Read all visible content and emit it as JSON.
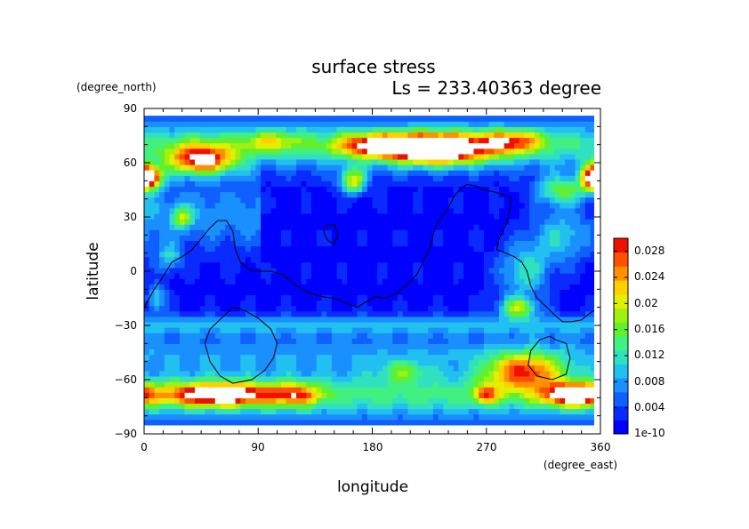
{
  "chart_data": {
    "type": "heatmap",
    "title": "surface stress",
    "subtitle": "Ls = 233.40363 degree",
    "xlabel": "longitude",
    "ylabel": "latitude",
    "x_units": "(degree_east)",
    "y_units": "(degree_north)",
    "xlim": [
      0,
      360
    ],
    "ylim": [
      -90,
      90
    ],
    "x_ticks": [
      "0",
      "90",
      "180",
      "270",
      "360"
    ],
    "y_ticks": [
      "90",
      "60",
      "30",
      "0",
      "−30",
      "−60",
      "−90"
    ],
    "colorbar": {
      "min": 0,
      "max": 0.03,
      "tick_labels": [
        "1e-10",
        "0.004",
        "0.008",
        "0.012",
        "0.016",
        "0.02",
        "0.024",
        "0.028"
      ],
      "tick_values": [
        0,
        0.004,
        0.008,
        0.012,
        0.016,
        0.02,
        0.024,
        0.028
      ],
      "colors": [
        "#0000ff",
        "#0a2bff",
        "#1060ff",
        "#1a90ff",
        "#22c0f0",
        "#30e0c0",
        "#40f080",
        "#60f030",
        "#a0f010",
        "#e0f000",
        "#ffd000",
        "#ff9000",
        "#ff5000",
        "#f01000"
      ]
    },
    "features": [
      {
        "type": "band",
        "lat": 70,
        "lat_width": 14,
        "lon_start": 0,
        "lon_end": 360,
        "value": 0.011
      },
      {
        "type": "band",
        "lat": -68,
        "lat_width": 14,
        "lon_start": 0,
        "lon_end": 360,
        "value": 0.012
      },
      {
        "type": "band",
        "lat": -30,
        "lat_width": 6,
        "lon_start": 0,
        "lon_end": 360,
        "value": 0.007
      },
      {
        "type": "band",
        "lat": -45,
        "lat_width": 10,
        "lon_start": 0,
        "lon_end": 360,
        "value": 0.006
      },
      {
        "type": "band",
        "lat": 32,
        "lat_width": 20,
        "lon_start": 0,
        "lon_end": 90,
        "value": 0.006
      },
      {
        "type": "blob",
        "lon": 230,
        "lat": 68,
        "lon_r": 40,
        "lat_r": 8,
        "value": 0.032
      },
      {
        "type": "blob",
        "lon": 45,
        "lat": 62,
        "lon_r": 25,
        "lat_r": 8,
        "value": 0.024
      },
      {
        "type": "blob",
        "lon": 5,
        "lat": 52,
        "lon_r": 10,
        "lat_r": 6,
        "value": 0.022
      },
      {
        "type": "blob",
        "lon": 355,
        "lat": 52,
        "lon_r": 10,
        "lat_r": 7,
        "value": 0.03
      },
      {
        "type": "blob",
        "lon": 165,
        "lat": 50,
        "lon_r": 10,
        "lat_r": 7,
        "value": 0.018
      },
      {
        "type": "blob",
        "lon": 60,
        "lat": -68,
        "lon_r": 40,
        "lat_r": 6,
        "value": 0.026
      },
      {
        "type": "blob",
        "lon": 120,
        "lat": -68,
        "lon_r": 20,
        "lat_r": 6,
        "value": 0.014
      },
      {
        "type": "blob",
        "lon": 340,
        "lat": -68,
        "lon_r": 25,
        "lat_r": 6,
        "value": 0.026
      },
      {
        "type": "blob",
        "lon": 300,
        "lat": -55,
        "lon_r": 30,
        "lat_r": 10,
        "value": 0.02
      },
      {
        "type": "blob",
        "lon": 295,
        "lat": -20,
        "lon_r": 15,
        "lat_r": 6,
        "value": 0.016
      },
      {
        "type": "blob",
        "lon": 300,
        "lat": 0,
        "lon_r": 20,
        "lat_r": 15,
        "value": 0.01
      },
      {
        "type": "blob",
        "lon": 330,
        "lat": 20,
        "lon_r": 25,
        "lat_r": 15,
        "value": 0.009
      },
      {
        "type": "blob",
        "lon": 330,
        "lat": 45,
        "lon_r": 20,
        "lat_r": 8,
        "value": 0.014
      },
      {
        "type": "blob",
        "lon": 30,
        "lat": 30,
        "lon_r": 8,
        "lat_r": 6,
        "value": 0.012
      },
      {
        "type": "blob",
        "lon": 10,
        "lat": -15,
        "lon_r": 8,
        "lat_r": 8,
        "value": 0.009
      },
      {
        "type": "blob",
        "lon": 20,
        "lat": 8,
        "lon_r": 10,
        "lat_r": 8,
        "value": 0.008
      },
      {
        "type": "blob",
        "lon": 205,
        "lat": -55,
        "lon_r": 20,
        "lat_r": 6,
        "value": 0.008
      },
      {
        "type": "blob",
        "lon": 270,
        "lat": -68,
        "lon_r": 10,
        "lat_r": 5,
        "value": 0.014
      },
      {
        "type": "blob",
        "lon": 180,
        "lat": 70,
        "lon_r": 30,
        "lat_r": 6,
        "value": 0.018
      },
      {
        "type": "blob",
        "lon": 290,
        "lat": 72,
        "lon_r": 25,
        "lat_r": 6,
        "value": 0.016
      },
      {
        "type": "blob",
        "lon": 100,
        "lat": 72,
        "lon_r": 25,
        "lat_r": 6,
        "value": 0.009
      }
    ],
    "contours": [
      [
        [
          0,
          -20
        ],
        [
          8,
          -10
        ],
        [
          15,
          -3
        ],
        [
          22,
          5
        ],
        [
          30,
          8
        ],
        [
          38,
          12
        ],
        [
          45,
          18
        ],
        [
          52,
          24
        ],
        [
          58,
          28
        ],
        [
          65,
          28
        ],
        [
          70,
          22
        ],
        [
          72,
          12
        ],
        [
          76,
          5
        ],
        [
          85,
          0
        ],
        [
          100,
          0
        ],
        [
          110,
          -2
        ],
        [
          115,
          -5
        ],
        [
          120,
          -8
        ],
        [
          130,
          -12
        ],
        [
          140,
          -14
        ],
        [
          150,
          -15
        ],
        [
          160,
          -18
        ],
        [
          168,
          -20
        ],
        [
          175,
          -17
        ],
        [
          183,
          -14
        ],
        [
          190,
          -15
        ],
        [
          200,
          -12
        ],
        [
          208,
          -7
        ],
        [
          215,
          -2
        ],
        [
          220,
          5
        ],
        [
          225,
          12
        ],
        [
          228,
          20
        ],
        [
          230,
          25
        ],
        [
          235,
          30
        ],
        [
          240,
          35
        ],
        [
          245,
          42
        ],
        [
          250,
          46
        ],
        [
          255,
          48
        ],
        [
          262,
          47
        ],
        [
          268,
          45
        ],
        [
          275,
          44
        ],
        [
          285,
          42
        ],
        [
          290,
          40
        ],
        [
          288,
          33
        ],
        [
          285,
          25
        ],
        [
          280,
          18
        ],
        [
          278,
          12
        ],
        [
          285,
          10
        ],
        [
          292,
          8
        ],
        [
          298,
          5
        ],
        [
          302,
          0
        ],
        [
          305,
          -8
        ],
        [
          310,
          -15
        ],
        [
          318,
          -20
        ],
        [
          325,
          -25
        ],
        [
          330,
          -28
        ],
        [
          337,
          -28
        ],
        [
          345,
          -27
        ],
        [
          352,
          -23
        ],
        [
          360,
          -20
        ]
      ],
      [
        [
          58,
          -28
        ],
        [
          70,
          -20
        ],
        [
          80,
          -22
        ],
        [
          90,
          -26
        ],
        [
          100,
          -32
        ],
        [
          105,
          -40
        ],
        [
          102,
          -48
        ],
        [
          95,
          -55
        ],
        [
          85,
          -60
        ],
        [
          70,
          -62
        ],
        [
          60,
          -58
        ],
        [
          52,
          -50
        ],
        [
          48,
          -40
        ],
        [
          52,
          -32
        ],
        [
          58,
          -28
        ]
      ],
      [
        [
          325,
          -38
        ],
        [
          333,
          -40
        ],
        [
          336,
          -48
        ],
        [
          333,
          -57
        ],
        [
          322,
          -60
        ],
        [
          310,
          -58
        ],
        [
          303,
          -52
        ],
        [
          305,
          -44
        ],
        [
          312,
          -38
        ],
        [
          320,
          -36
        ],
        [
          325,
          -38
        ]
      ],
      [
        [
          142,
          25
        ],
        [
          150,
          26
        ],
        [
          153,
          20
        ],
        [
          150,
          15
        ],
        [
          145,
          17
        ],
        [
          142,
          21
        ],
        [
          142,
          25
        ]
      ]
    ]
  }
}
